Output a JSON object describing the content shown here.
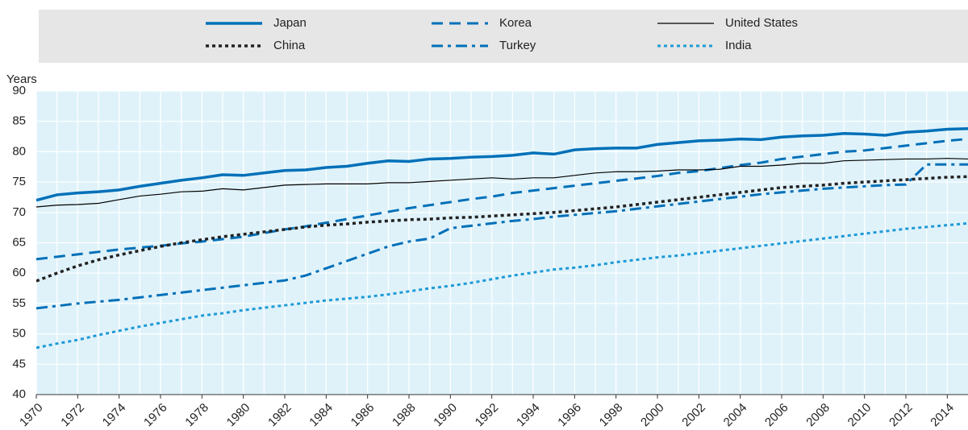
{
  "chart_data": {
    "type": "line",
    "y_label": "Years",
    "x": [
      1970,
      1971,
      1972,
      1973,
      1974,
      1975,
      1976,
      1977,
      1978,
      1979,
      1980,
      1981,
      1982,
      1983,
      1984,
      1985,
      1986,
      1987,
      1988,
      1989,
      1990,
      1991,
      1992,
      1993,
      1994,
      1995,
      1996,
      1997,
      1998,
      1999,
      2000,
      2001,
      2002,
      2003,
      2004,
      2005,
      2006,
      2007,
      2008,
      2009,
      2010,
      2011,
      2012,
      2013,
      2014,
      2015
    ],
    "xlim": [
      1970,
      2015
    ],
    "xticks": [
      1970,
      1972,
      1974,
      1976,
      1978,
      1980,
      1982,
      1984,
      1986,
      1988,
      1990,
      1992,
      1994,
      1996,
      1998,
      2000,
      2002,
      2004,
      2006,
      2008,
      2010,
      2012,
      2014
    ],
    "ylim": [
      40,
      90
    ],
    "yticks": [
      40,
      45,
      50,
      55,
      60,
      65,
      70,
      75,
      80,
      85,
      90
    ],
    "grid": true,
    "series": [
      {
        "name": "Japan",
        "color": "#0070b8",
        "line_style": "solid",
        "line_width": 3.5,
        "values": [
          72,
          72.9,
          73.2,
          73.4,
          73.7,
          74.3,
          74.8,
          75.3,
          75.7,
          76.2,
          76.1,
          76.5,
          76.9,
          77.0,
          77.4,
          77.6,
          78.1,
          78.5,
          78.4,
          78.8,
          78.9,
          79.1,
          79.2,
          79.4,
          79.8,
          79.6,
          80.3,
          80.5,
          80.6,
          80.6,
          81.2,
          81.5,
          81.8,
          81.9,
          82.1,
          82.0,
          82.4,
          82.6,
          82.7,
          83.0,
          82.9,
          82.7,
          83.2,
          83.4,
          83.7,
          83.8
        ]
      },
      {
        "name": "Korea",
        "color": "#0070b8",
        "line_style": "dashed",
        "line_width": 3,
        "values": [
          62.3,
          62.7,
          63.1,
          63.5,
          63.9,
          64.2,
          64.5,
          64.9,
          65.2,
          65.6,
          66.0,
          66.6,
          67.2,
          67.7,
          68.3,
          68.9,
          69.5,
          70.1,
          70.7,
          71.2,
          71.7,
          72.2,
          72.6,
          73.2,
          73.6,
          74.0,
          74.4,
          74.8,
          75.2,
          75.6,
          76.0,
          76.5,
          76.8,
          77.3,
          77.8,
          78.2,
          78.8,
          79.2,
          79.6,
          80.0,
          80.2,
          80.6,
          81.0,
          81.4,
          81.8,
          82.1
        ]
      },
      {
        "name": "United States",
        "color": "#000000",
        "line_style": "solid",
        "line_width": 1.2,
        "values": [
          70.9,
          71.2,
          71.3,
          71.5,
          72.1,
          72.7,
          73.0,
          73.4,
          73.5,
          73.9,
          73.7,
          74.1,
          74.5,
          74.6,
          74.7,
          74.7,
          74.7,
          74.9,
          74.9,
          75.1,
          75.3,
          75.5,
          75.7,
          75.5,
          75.7,
          75.7,
          76.1,
          76.5,
          76.7,
          76.7,
          76.8,
          77.0,
          77.0,
          77.1,
          77.6,
          77.6,
          77.8,
          78.1,
          78.1,
          78.5,
          78.6,
          78.7,
          78.8,
          78.8,
          78.9,
          78.8
        ]
      },
      {
        "name": "China",
        "color": "#222222",
        "line_style": "dotted",
        "line_width": 3.5,
        "values": [
          58.7,
          60.0,
          61.2,
          62.2,
          63.0,
          63.7,
          64.4,
          65.0,
          65.5,
          66.0,
          66.4,
          66.8,
          67.2,
          67.6,
          67.9,
          68.1,
          68.4,
          68.6,
          68.8,
          68.9,
          69.1,
          69.2,
          69.4,
          69.6,
          69.8,
          70.0,
          70.3,
          70.6,
          70.9,
          71.3,
          71.7,
          72.1,
          72.5,
          72.9,
          73.3,
          73.7,
          74.1,
          74.3,
          74.5,
          74.8,
          75.0,
          75.2,
          75.4,
          75.6,
          75.8,
          75.9
        ]
      },
      {
        "name": "Turkey",
        "color": "#0070b8",
        "line_style": "dashdot",
        "line_width": 3,
        "values": [
          54.2,
          54.6,
          55.0,
          55.3,
          55.6,
          56.0,
          56.4,
          56.8,
          57.2,
          57.6,
          58.0,
          58.4,
          58.8,
          59.6,
          60.8,
          62.0,
          63.2,
          64.4,
          65.2,
          65.7,
          67.4,
          67.8,
          68.2,
          68.6,
          68.9,
          69.3,
          69.6,
          69.9,
          70.2,
          70.6,
          71.0,
          71.4,
          71.8,
          72.2,
          72.6,
          73.0,
          73.3,
          73.6,
          73.9,
          74.1,
          74.3,
          74.5,
          74.6,
          77.9,
          77.9,
          77.9
        ]
      },
      {
        "name": "India",
        "color": "#1e9ad6",
        "line_style": "dotted",
        "line_width": 3,
        "values": [
          47.7,
          48.4,
          49.0,
          49.8,
          50.5,
          51.2,
          51.8,
          52.4,
          53.0,
          53.4,
          53.9,
          54.3,
          54.7,
          55.1,
          55.5,
          55.8,
          56.1,
          56.5,
          57.0,
          57.5,
          57.9,
          58.4,
          59.0,
          59.6,
          60.1,
          60.6,
          60.9,
          61.3,
          61.8,
          62.2,
          62.6,
          62.9,
          63.3,
          63.7,
          64.1,
          64.5,
          64.9,
          65.3,
          65.7,
          66.1,
          66.5,
          66.9,
          67.3,
          67.6,
          67.9,
          68.2
        ]
      }
    ]
  }
}
